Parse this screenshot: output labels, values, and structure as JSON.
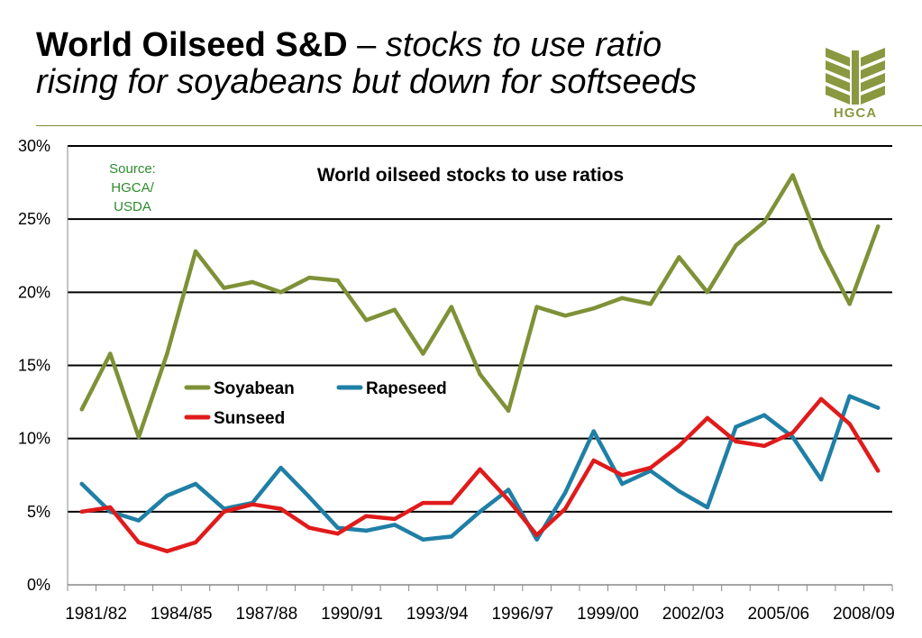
{
  "slide": {
    "title_bold": "World Oilseed S&D",
    "title_dash": " – ",
    "title_italic_1": "stocks to use ratio",
    "title_italic_2": "rising for soyabeans but down for softseeds"
  },
  "logo": {
    "text": "HGCA",
    "icon": "wheat-logo-icon",
    "color": "#8a9840"
  },
  "source_note": [
    "Source:",
    "HGCA/",
    "USDA"
  ],
  "chart_data": {
    "type": "line",
    "title": "World oilseed stocks to use ratios",
    "xlabel": "",
    "ylabel": "",
    "ylim": [
      0,
      30
    ],
    "yticks": [
      "0%",
      "5%",
      "10%",
      "15%",
      "20%",
      "25%",
      "30%"
    ],
    "grid": "horizontal",
    "legend_placement": "center-left",
    "x": [
      "1981/82",
      "1982/83",
      "1983/84",
      "1984/85",
      "1985/86",
      "1986/87",
      "1987/88",
      "1988/89",
      "1989/90",
      "1990/91",
      "1991/92",
      "1992/93",
      "1993/94",
      "1994/95",
      "1995/96",
      "1996/97",
      "1997/98",
      "1998/99",
      "1999/00",
      "2000/01",
      "2001/02",
      "2002/03",
      "2003/04",
      "2004/05",
      "2005/06",
      "2006/07",
      "2007/08",
      "2008/09",
      "2009/10"
    ],
    "xtick_labels": [
      "1981/82",
      "1984/85",
      "1987/88",
      "1990/91",
      "1993/94",
      "1996/97",
      "1999/00",
      "2002/03",
      "2005/06",
      "2008/09"
    ],
    "series": [
      {
        "name": "Soyabean",
        "color": "#7f9137",
        "values": [
          12.0,
          15.8,
          10.1,
          15.8,
          22.8,
          20.3,
          20.7,
          20.0,
          21.0,
          20.8,
          18.1,
          18.8,
          15.8,
          19.0,
          14.4,
          11.9,
          19.0,
          18.4,
          18.9,
          19.6,
          19.2,
          22.4,
          20.0,
          23.2,
          24.8,
          28.0,
          23.0,
          19.2,
          24.5
        ]
      },
      {
        "name": "Rapeseed",
        "color": "#1f7fa6",
        "values": [
          6.9,
          5.0,
          4.4,
          6.1,
          6.9,
          5.2,
          5.6,
          8.0,
          6.0,
          3.9,
          3.7,
          4.1,
          3.1,
          3.3,
          5.0,
          6.5,
          3.1,
          6.3,
          10.5,
          6.9,
          7.8,
          6.4,
          5.3,
          10.8,
          11.6,
          10.1,
          7.2,
          12.9,
          12.1
        ]
      },
      {
        "name": "Sunseed",
        "color": "#e01b1b",
        "values": [
          5.0,
          5.3,
          2.9,
          2.3,
          2.9,
          5.0,
          5.5,
          5.2,
          3.9,
          3.5,
          4.7,
          4.5,
          5.6,
          5.6,
          7.9,
          5.8,
          3.4,
          5.2,
          8.5,
          7.5,
          8.0,
          9.5,
          11.4,
          9.8,
          9.5,
          10.4,
          12.7,
          11.0,
          7.8
        ]
      }
    ]
  }
}
